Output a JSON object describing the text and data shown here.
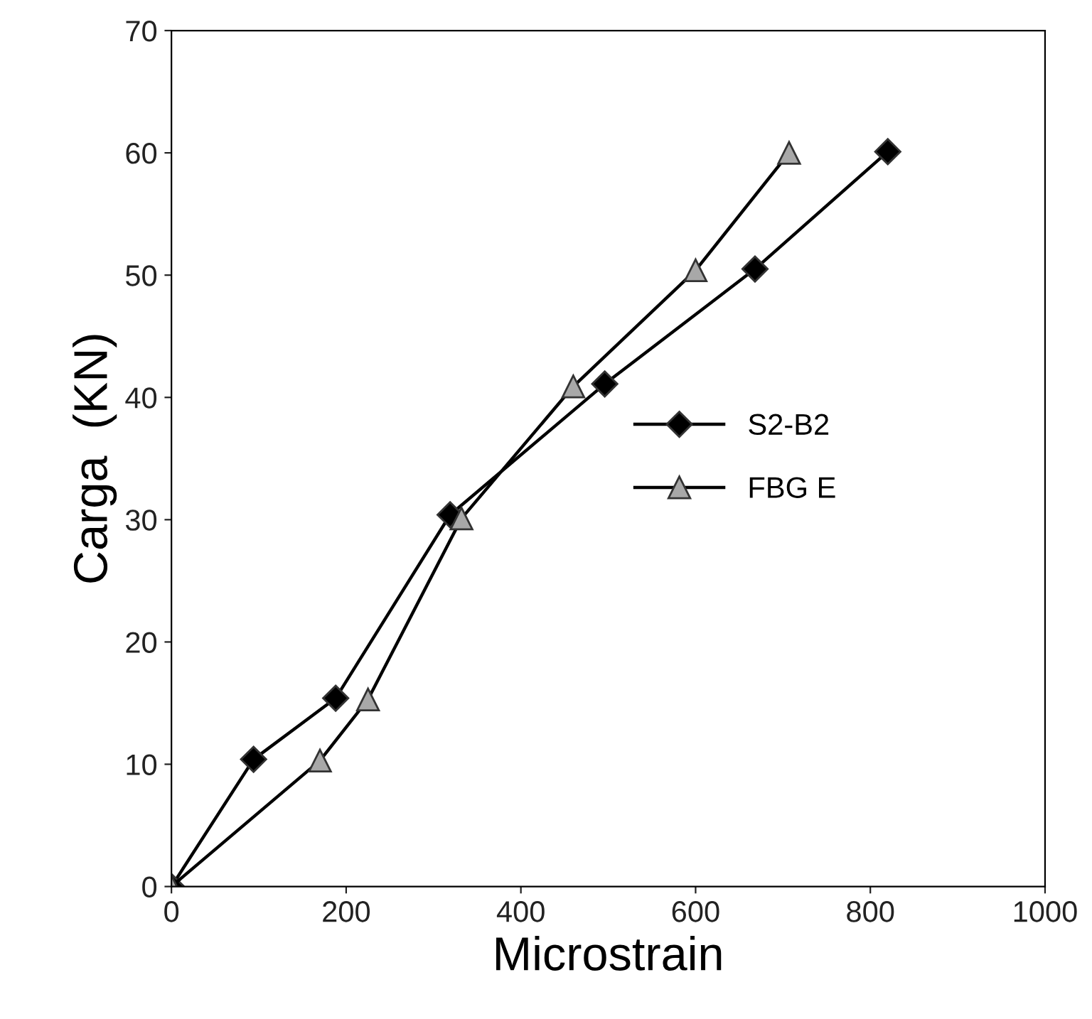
{
  "chart_data": {
    "type": "line",
    "xlabel": "Microstrain",
    "ylabel": "Carga  (KN)",
    "xlim": [
      0,
      1000
    ],
    "ylim": [
      0,
      70
    ],
    "xticks": [
      0,
      200,
      400,
      600,
      800,
      1000
    ],
    "yticks": [
      0,
      10,
      20,
      30,
      40,
      50,
      60,
      70
    ],
    "grid": false,
    "legend": "right",
    "line_style": "solid",
    "series": [
      {
        "name": "S2-B2",
        "color": "#000000",
        "marker": "diamond",
        "x": [
          0,
          94,
          188,
          319,
          496,
          668,
          820
        ],
        "values": [
          0,
          10.4,
          15.4,
          30.4,
          41.1,
          50.5,
          60.1
        ]
      },
      {
        "name": "FBG E",
        "color": "#a8a8a8",
        "marker": "triangle",
        "x": [
          0,
          170,
          225,
          332,
          460,
          600,
          707
        ],
        "values": [
          0,
          10.3,
          15.3,
          30.1,
          40.9,
          50.4,
          60
        ]
      }
    ]
  }
}
